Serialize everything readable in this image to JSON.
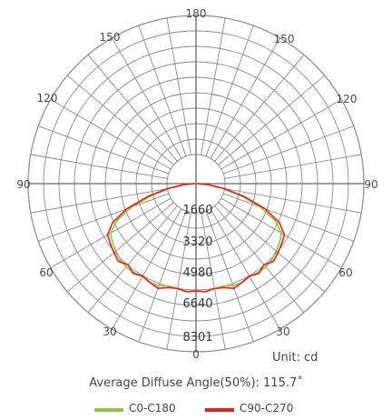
{
  "chart_data": {
    "type": "polar",
    "unit_label": "Unit: cd",
    "angle_labels": {
      "top": "180",
      "upper": "150",
      "upper_mid": "120",
      "side": "90",
      "lower_mid": "60",
      "lower": "30",
      "bottom": "0"
    },
    "radial_labels": [
      "1660",
      "3320",
      "4980",
      "6640",
      "8301"
    ],
    "r_max": 8301,
    "caption": "Average Diffuse Angle(50%): 115.7˚",
    "colors": {
      "grid": "#8a8a8a",
      "C0-C180": "#8dc63f",
      "C90-C270": "#e2231a"
    },
    "series": [
      {
        "name": "C0-C180",
        "angles": [
          0,
          5,
          10,
          15,
          20,
          25,
          30,
          35,
          40,
          45,
          50,
          55,
          60,
          65,
          70,
          75,
          80,
          85,
          90
        ],
        "values": [
          6440,
          6450,
          6380,
          6320,
          6480,
          6530,
          6400,
          6470,
          6500,
          6420,
          6250,
          6100,
          5900,
          5200,
          4100,
          2800,
          1600,
          700,
          80
        ]
      },
      {
        "name": "C90-C270",
        "angles": [
          0,
          5,
          10,
          15,
          20,
          25,
          30,
          35,
          40,
          45,
          50,
          55,
          60,
          65,
          70,
          75,
          80,
          85,
          90
        ],
        "values": [
          6400,
          6480,
          6350,
          6420,
          6650,
          6500,
          6380,
          6550,
          6320,
          6560,
          6400,
          6250,
          6100,
          5500,
          4400,
          3000,
          1700,
          750,
          80
        ]
      }
    ]
  }
}
